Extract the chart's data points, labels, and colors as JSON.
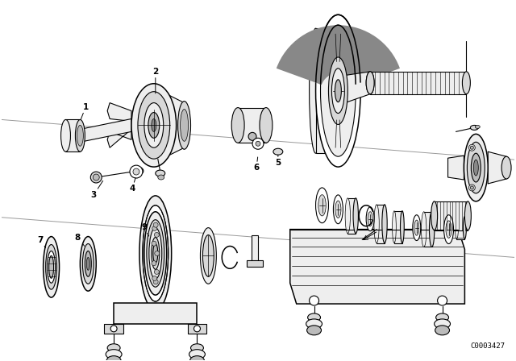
{
  "background_color": "#ffffff",
  "figure_width": 6.4,
  "figure_height": 4.48,
  "dpi": 100,
  "catalog_code": "C0003427",
  "text_color": "#000000",
  "label_fontsize": 7.5,
  "catalog_fontsize": 6.5,
  "gray_light": "#e8e8e8",
  "gray_mid": "#cccccc",
  "gray_dark": "#aaaaaa",
  "black": "#000000"
}
